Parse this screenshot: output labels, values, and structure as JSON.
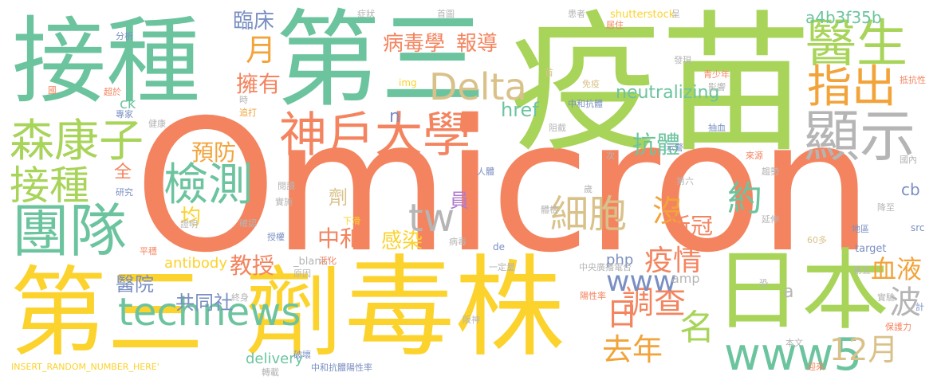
{
  "words": [
    {
      "text": "Omicron",
      "color": "#f4845f"
    },
    {
      "text": "疫苗",
      "color": "#a8d45a"
    },
    {
      "text": "第三",
      "color": "#6cc49f"
    },
    {
      "text": "接種",
      "color": "#6cc49f"
    },
    {
      "text": "第三",
      "color": "#fcd22c"
    },
    {
      "text": "劑",
      "color": "#fcd22c"
    },
    {
      "text": "毒株",
      "color": "#fcd22c"
    },
    {
      "text": "日本",
      "color": "#a8d45a"
    },
    {
      "text": "團隊",
      "color": "#6cc49f"
    },
    {
      "text": "醫生",
      "color": "#a8d45a"
    },
    {
      "text": "指出",
      "color": "#f2a33a"
    },
    {
      "text": "顯示",
      "color": "#b5b5b5"
    },
    {
      "text": "森康子",
      "color": "#a8d45a"
    },
    {
      "text": "神戶大學",
      "color": "#f4845f"
    },
    {
      "text": "Delta",
      "color": "#d9c28a"
    },
    {
      "text": "接種",
      "color": "#a8d45a"
    },
    {
      "text": "檢測",
      "color": "#6cc49f"
    },
    {
      "text": "technews",
      "color": "#6cc49f"
    },
    {
      "text": "www5",
      "color": "#6cc49f"
    },
    {
      "text": "tw",
      "color": "#b5b5b5"
    },
    {
      "text": "細胞",
      "color": "#d9c28a"
    },
    {
      "text": "病毒學",
      "color": "#f4845f"
    },
    {
      "text": "報導",
      "color": "#f4845f"
    },
    {
      "text": "月",
      "color": "#f2a33a"
    },
    {
      "text": "臨床",
      "color": "#7a8fc2"
    },
    {
      "text": "預防",
      "color": "#f2a33a"
    },
    {
      "text": "擁有",
      "color": "#f4845f"
    },
    {
      "text": "抗體",
      "color": "#6cc49f"
    },
    {
      "text": "約",
      "color": "#6cc49f"
    },
    {
      "text": "沒",
      "color": "#f2a33a"
    },
    {
      "text": "名",
      "color": "#a8d45a"
    },
    {
      "text": "調查",
      "color": "#f4845f"
    },
    {
      "text": "去年",
      "color": "#f2a33a"
    },
    {
      "text": "12月",
      "color": "#d9c28a"
    },
    {
      "text": "波",
      "color": "#b5b5b5"
    },
    {
      "text": "血液",
      "color": "#f2a33a"
    },
    {
      "text": "疫情",
      "color": "#f4845f"
    },
    {
      "text": "新冠",
      "color": "#f4845f"
    },
    {
      "text": "www",
      "color": "#7a8fc2"
    },
    {
      "text": "日",
      "color": "#f4845f"
    },
    {
      "text": "neutralizing",
      "color": "#6cc49f"
    },
    {
      "text": "href",
      "color": "#6cc49f"
    },
    {
      "text": "a4b3f35b",
      "color": "#6cc49f"
    },
    {
      "text": "教授",
      "color": "#f4845f"
    },
    {
      "text": "共同社",
      "color": "#7a8fc2"
    },
    {
      "text": "醫院",
      "color": "#7a8fc2"
    },
    {
      "text": "均",
      "color": "#fcd22c"
    },
    {
      "text": "全",
      "color": "#f4845f"
    },
    {
      "text": "劑",
      "color": "#d9c28a"
    },
    {
      "text": "中和",
      "color": "#f4845f"
    },
    {
      "text": "感染",
      "color": "#fcd22c"
    },
    {
      "text": "員",
      "color": "#b07ad0"
    },
    {
      "text": "antibody",
      "color": "#fcd22c"
    },
    {
      "text": "delivery",
      "color": "#6cc49f"
    },
    {
      "text": "php",
      "color": "#7a8fc2"
    },
    {
      "text": "amp",
      "color": "#b5b5b5"
    },
    {
      "text": "cb",
      "color": "#7a8fc2"
    },
    {
      "text": "a",
      "color": "#b5b5b5"
    },
    {
      "text": "n",
      "color": "#7a8fc2"
    },
    {
      "text": "ck",
      "color": "#6cc49f"
    },
    {
      "text": "INSERT_RANDOM_NUMBER_HERE'",
      "color": "#fcd22c"
    },
    {
      "text": "_blank'",
      "color": "#b5b5b5"
    },
    {
      "text": "shutterstock",
      "color": "#fcd22c"
    },
    {
      "text": "target",
      "color": "#7a8fc2"
    },
    {
      "text": "src",
      "color": "#7a8fc2"
    },
    {
      "text": "de",
      "color": "#7a8fc2"
    },
    {
      "text": "img",
      "color": "#fcd22c"
    },
    {
      "text": "中央廣播電台",
      "color": "#b5b5b5"
    },
    {
      "text": "中和抗體陽性率",
      "color": "#7a8fc2"
    },
    {
      "text": "中和抗體",
      "color": "#7a8fc2"
    },
    {
      "text": "分析",
      "color": "#7a8fc2"
    },
    {
      "text": "國",
      "color": "#f4845f"
    },
    {
      "text": "超於",
      "color": "#f4845f"
    },
    {
      "text": "專家",
      "color": "#7a8fc2"
    },
    {
      "text": "健康",
      "color": "#b5b5b5"
    },
    {
      "text": "時",
      "color": "#b5b5b5"
    },
    {
      "text": "追打",
      "color": "#f2a33a"
    },
    {
      "text": "研究",
      "color": "#7a8fc2"
    },
    {
      "text": "閱讀",
      "color": "#b5b5b5"
    },
    {
      "text": "實施",
      "color": "#b5b5b5"
    },
    {
      "text": "證明",
      "color": "#b5b5b5"
    },
    {
      "text": "確認",
      "color": "#b5b5b5"
    },
    {
      "text": "授權",
      "color": "#7a8fc2"
    },
    {
      "text": "活化",
      "color": "#f4845f"
    },
    {
      "text": "原因",
      "color": "#b5b5b5"
    },
    {
      "text": "終身",
      "color": "#b5b5b5"
    },
    {
      "text": "平穩",
      "color": "#f4845f"
    },
    {
      "text": "破壞",
      "color": "#7a8fc2"
    },
    {
      "text": "轉載",
      "color": "#b5b5b5"
    },
    {
      "text": "症狀",
      "color": "#b5b5b5"
    },
    {
      "text": "首圖",
      "color": "#b5b5b5"
    },
    {
      "text": "患者",
      "color": "#b5b5b5"
    },
    {
      "text": "居住",
      "color": "#f4845f"
    },
    {
      "text": "呈",
      "color": "#b5b5b5"
    },
    {
      "text": "發現",
      "color": "#b5b5b5"
    },
    {
      "text": "青少年",
      "color": "#f4845f"
    },
    {
      "text": "抵抗性",
      "color": "#f4845f"
    },
    {
      "text": "影響",
      "color": "#b5b5b5"
    },
    {
      "text": "免疫",
      "color": "#d9c28a"
    },
    {
      "text": "首",
      "color": "#d9c28a"
    },
    {
      "text": "阻截",
      "color": "#b5b5b5"
    },
    {
      "text": "抽血",
      "color": "#7a8fc2"
    },
    {
      "text": "示警",
      "color": "#7a8fc2"
    },
    {
      "text": "來源",
      "color": "#f4845f"
    },
    {
      "text": "次",
      "color": "#b5b5b5"
    },
    {
      "text": "人體",
      "color": "#7a8fc2"
    },
    {
      "text": "第六",
      "color": "#b5b5b5"
    },
    {
      "text": "歲",
      "color": "#b5b5b5"
    },
    {
      "text": "體檢",
      "color": "#b5b5b5"
    },
    {
      "text": "趨勢",
      "color": "#b5b5b5"
    },
    {
      "text": "國內",
      "color": "#b5b5b5"
    },
    {
      "text": "降至",
      "color": "#b5b5b5"
    },
    {
      "text": "延伸",
      "color": "#b5b5b5"
    },
    {
      "text": "地區",
      "color": "#7a8fc2"
    },
    {
      "text": "下滑",
      "color": "#fcd22c"
    },
    {
      "text": "病毒",
      "color": "#b5b5b5"
    },
    {
      "text": "60多",
      "color": "#d9c28a"
    },
    {
      "text": "一定量",
      "color": "#b5b5b5"
    },
    {
      "text": "陽性率",
      "color": "#f4845f"
    },
    {
      "text": "第五",
      "color": "#b5b5b5"
    },
    {
      "text": "阪神",
      "color": "#b5b5b5"
    },
    {
      "text": "恐",
      "color": "#b5b5b5"
    },
    {
      "text": "實驗",
      "color": "#b5b5b5"
    },
    {
      "text": "本文",
      "color": "#b5b5b5"
    },
    {
      "text": "迎來",
      "color": "#f4845f"
    },
    {
      "text": "保護力",
      "color": "#f4845f"
    },
    {
      "text": "計",
      "color": "#7a8fc2"
    }
  ]
}
